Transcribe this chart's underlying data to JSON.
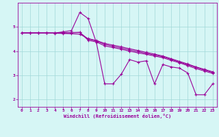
{
  "xlabel": "Windchill (Refroidissement éolien,°C)",
  "bg_color": "#d6f5f5",
  "line_color": "#990099",
  "grid_color": "#a0d8d8",
  "xlim": [
    -0.5,
    23.5
  ],
  "ylim": [
    1.7,
    6.0
  ],
  "xticks": [
    0,
    1,
    2,
    3,
    4,
    5,
    6,
    7,
    8,
    9,
    10,
    11,
    12,
    13,
    14,
    15,
    16,
    17,
    18,
    19,
    20,
    21,
    22,
    23
  ],
  "yticks": [
    2,
    3,
    4,
    5
  ],
  "lines": [
    {
      "x": [
        0,
        1,
        2,
        3,
        4,
        5,
        6,
        7,
        8,
        9,
        10,
        11,
        12,
        13,
        14,
        15,
        16,
        17,
        18,
        19,
        20,
        21,
        22,
        23
      ],
      "y": [
        4.75,
        4.75,
        4.75,
        4.75,
        4.75,
        4.8,
        4.85,
        5.6,
        5.35,
        4.35,
        2.65,
        2.65,
        3.05,
        3.65,
        3.55,
        3.6,
        2.65,
        3.45,
        3.35,
        3.3,
        3.1,
        2.2,
        2.2,
        2.65
      ]
    },
    {
      "x": [
        0,
        1,
        2,
        3,
        4,
        5,
        6,
        7,
        8,
        9,
        10,
        11,
        12,
        13,
        14,
        15,
        16,
        17,
        18,
        19,
        20,
        21,
        22,
        23
      ],
      "y": [
        4.75,
        4.75,
        4.75,
        4.75,
        4.75,
        4.76,
        4.77,
        4.78,
        4.45,
        4.38,
        4.22,
        4.15,
        4.08,
        4.0,
        3.93,
        3.87,
        3.8,
        3.73,
        3.62,
        3.52,
        3.4,
        3.28,
        3.18,
        3.08
      ]
    },
    {
      "x": [
        0,
        1,
        2,
        3,
        4,
        5,
        6,
        7,
        8,
        9,
        10,
        11,
        12,
        13,
        14,
        15,
        16,
        17,
        18,
        19,
        20,
        21,
        22,
        23
      ],
      "y": [
        4.75,
        4.75,
        4.75,
        4.75,
        4.75,
        4.75,
        4.76,
        4.77,
        4.5,
        4.42,
        4.28,
        4.2,
        4.13,
        4.05,
        3.98,
        3.91,
        3.84,
        3.77,
        3.66,
        3.55,
        3.44,
        3.33,
        3.22,
        3.12
      ]
    },
    {
      "x": [
        0,
        1,
        2,
        3,
        4,
        5,
        6,
        7,
        8,
        9,
        10,
        11,
        12,
        13,
        14,
        15,
        16,
        17,
        18,
        19,
        20,
        21,
        22,
        23
      ],
      "y": [
        4.75,
        4.75,
        4.75,
        4.75,
        4.74,
        4.73,
        4.72,
        4.7,
        4.52,
        4.44,
        4.32,
        4.25,
        4.18,
        4.1,
        4.03,
        3.95,
        3.88,
        3.8,
        3.69,
        3.58,
        3.47,
        3.35,
        3.25,
        3.15
      ]
    }
  ]
}
